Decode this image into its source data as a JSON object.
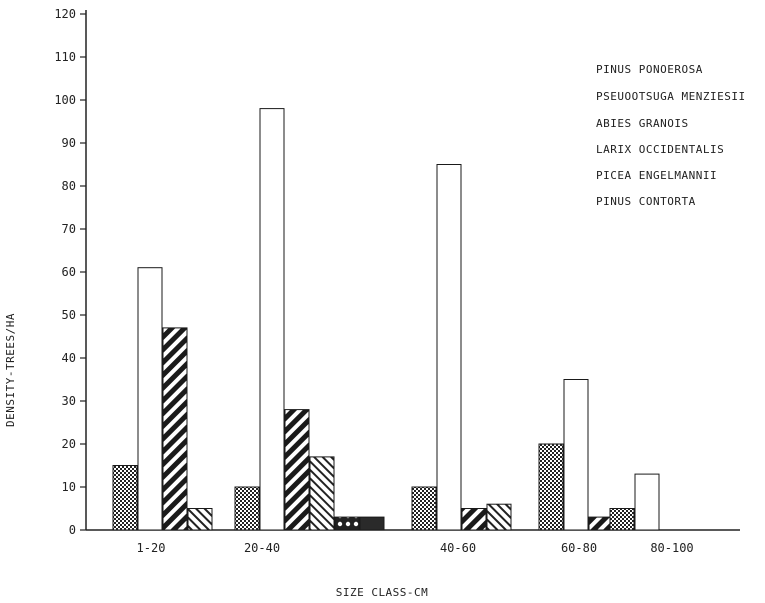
{
  "chart_data": {
    "type": "bar",
    "xlabel": "SIZE CLASS-CM",
    "ylabel": "DENSITY-TREES/HA",
    "ylim": [
      0,
      125
    ],
    "yticks": [
      0,
      10,
      20,
      30,
      40,
      50,
      60,
      70,
      80,
      90,
      100,
      110,
      120
    ],
    "categories": [
      "1-20",
      "20-40",
      "40-60",
      "60-80",
      "80-100"
    ],
    "legend_position": "top-right",
    "grid": false,
    "series": [
      {
        "name": "PINUS PONOEROSA",
        "values": [
          15,
          10,
          10,
          20,
          5
        ]
      },
      {
        "name": "PSEUOOTSUGA MENZIESII",
        "values": [
          61,
          98,
          85,
          35,
          13
        ]
      },
      {
        "name": "ABIES GRANOIS",
        "values": [
          47,
          28,
          5,
          3,
          0
        ]
      },
      {
        "name": "LARIX OCCIDENTALIS",
        "values": [
          5,
          17,
          6,
          0,
          0
        ]
      },
      {
        "name": "PICEA ENGELMANNII",
        "values": [
          0,
          3,
          0,
          0,
          0
        ]
      },
      {
        "name": "PINUS CONTORTA",
        "values": [
          0,
          3,
          0,
          0,
          0
        ]
      }
    ]
  }
}
